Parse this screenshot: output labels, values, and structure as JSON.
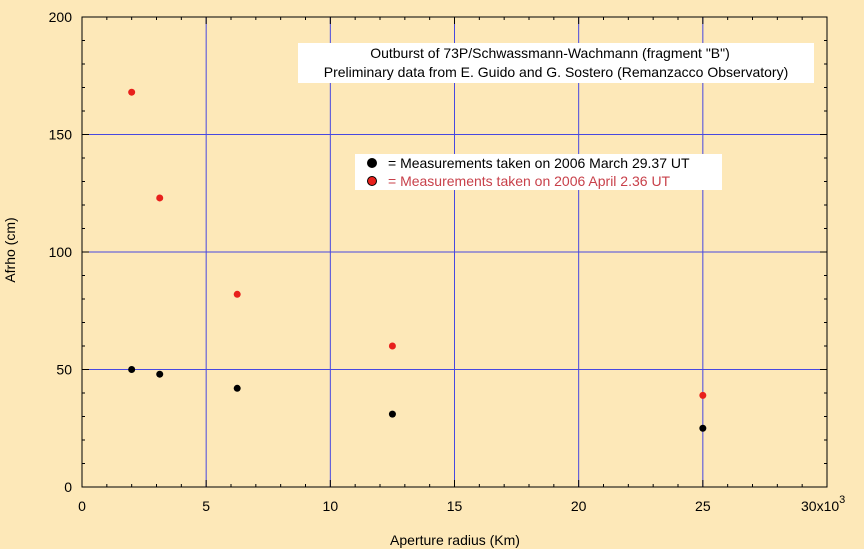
{
  "chart_data": {
    "type": "scatter",
    "title": "Outburst of 73P/Schwassmann-Wachmann (fragment \"B\")",
    "subtitle": "Preliminary data from E. Guido and G. Sostero (Remanzacco Observatory)",
    "xlabel": "Aperture radius (Km)",
    "ylabel": "Afrho (cm)",
    "x_multiplier_label": "x10",
    "x_multiplier_exp": "3",
    "xlim": [
      0,
      30000
    ],
    "ylim": [
      0,
      200
    ],
    "x_tick_values": [
      0,
      5000,
      10000,
      15000,
      20000,
      25000,
      30000
    ],
    "x_tick_labels": [
      "0",
      "5",
      "10",
      "15",
      "20",
      "25",
      "30"
    ],
    "y_tick_values": [
      0,
      50,
      100,
      150,
      200
    ],
    "y_tick_labels": [
      "0",
      "50",
      "100",
      "150",
      "200"
    ],
    "grid": true,
    "series": [
      {
        "name": "= Measurements taken on 2006 March 29.37 UT",
        "color": "#000000",
        "label_color": "#000000",
        "x": [
          2000,
          3130,
          6250,
          12500,
          25000
        ],
        "y": [
          50,
          48,
          42,
          31,
          25
        ]
      },
      {
        "name": "= Measurements taken on 2006 April 2.36 UT",
        "color": "#e8201c",
        "label_color": "#c8404a",
        "x": [
          2000,
          3130,
          6250,
          12500,
          25000
        ],
        "y": [
          168,
          123,
          82,
          60,
          39
        ]
      }
    ]
  },
  "style": {
    "background": "#fde8b8",
    "grid_color": "#4848e0",
    "axis_color": "#000000"
  }
}
